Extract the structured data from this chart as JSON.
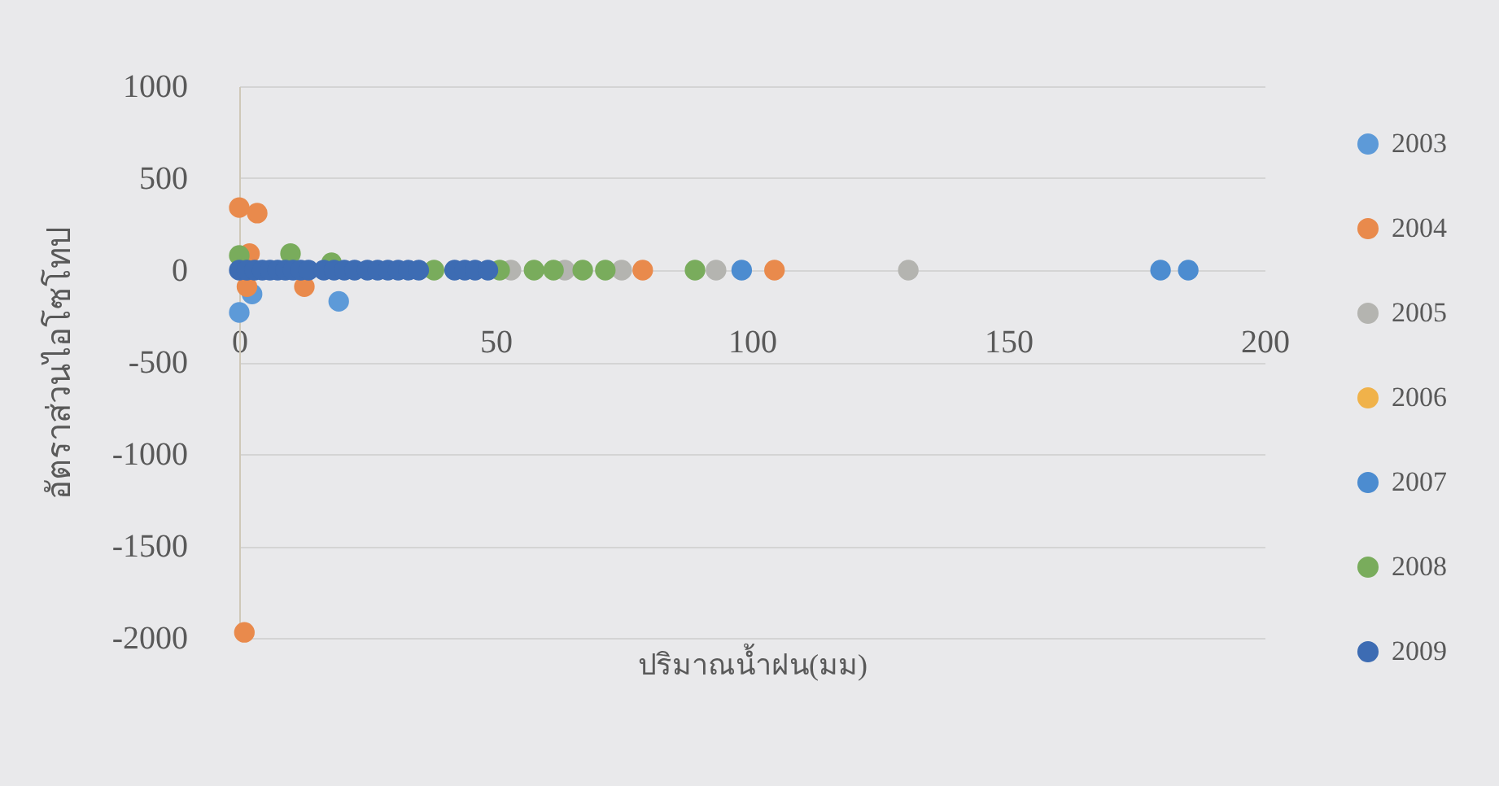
{
  "chart_data": {
    "type": "scatter",
    "xlabel": "ปริมาณน้ำฝน(มม)",
    "ylabel": "อัตราส่วนไอโซโทป",
    "xlim": [
      0,
      200
    ],
    "xticks": [
      0,
      50,
      100,
      150,
      200
    ],
    "ylim": [
      -2000,
      1000
    ],
    "yticks": [
      -2000,
      -1500,
      -1000,
      -500,
      0,
      500,
      1000
    ],
    "grid": "y",
    "legend": "right",
    "marker": "circle",
    "series": [
      {
        "name": "2003",
        "color": "#5d9ad8",
        "x": [
          0,
          2.5,
          19.4
        ],
        "values": [
          -230,
          -130,
          -170
        ]
      },
      {
        "name": "2004",
        "color": "#e98a4c",
        "x": [
          0,
          3.5,
          2,
          1.5,
          12.7,
          1,
          78.7,
          104.4
        ],
        "values": [
          340,
          310,
          90,
          -90,
          -90,
          -1970,
          0,
          0
        ]
      },
      {
        "name": "2005",
        "color": "#b4b4b0",
        "x": [
          53,
          63.5,
          74.6,
          93,
          130.5
        ],
        "values": [
          0,
          0,
          0,
          0,
          0
        ]
      },
      {
        "name": "2006",
        "color": "#f0b24a"
      },
      {
        "name": "2007",
        "color": "#4c8cd0",
        "x": [
          98,
          179.7,
          185.1
        ],
        "values": [
          0,
          0,
          0
        ]
      },
      {
        "name": "2008",
        "color": "#79ac5c",
        "x": [
          0,
          10,
          18,
          38,
          50.8,
          57.5,
          61.3,
          67,
          71.4,
          88.9
        ],
        "values": [
          80,
          90,
          40,
          0,
          0,
          0,
          0,
          0,
          0,
          0
        ]
      },
      {
        "name": "2009",
        "color": "#3d6cb3",
        "x": [
          0,
          1.5,
          3,
          4.5,
          6,
          7.5,
          9,
          10.5,
          12,
          13.5,
          16.5,
          18.5,
          20.5,
          22.5,
          25,
          27,
          29,
          31,
          33,
          35,
          42,
          44,
          46,
          48.5
        ],
        "values": [
          0,
          0,
          0,
          0,
          0,
          0,
          0,
          0,
          0,
          0,
          0,
          0,
          0,
          0,
          0,
          0,
          0,
          0,
          0,
          0,
          0,
          0,
          0,
          0
        ]
      }
    ]
  }
}
